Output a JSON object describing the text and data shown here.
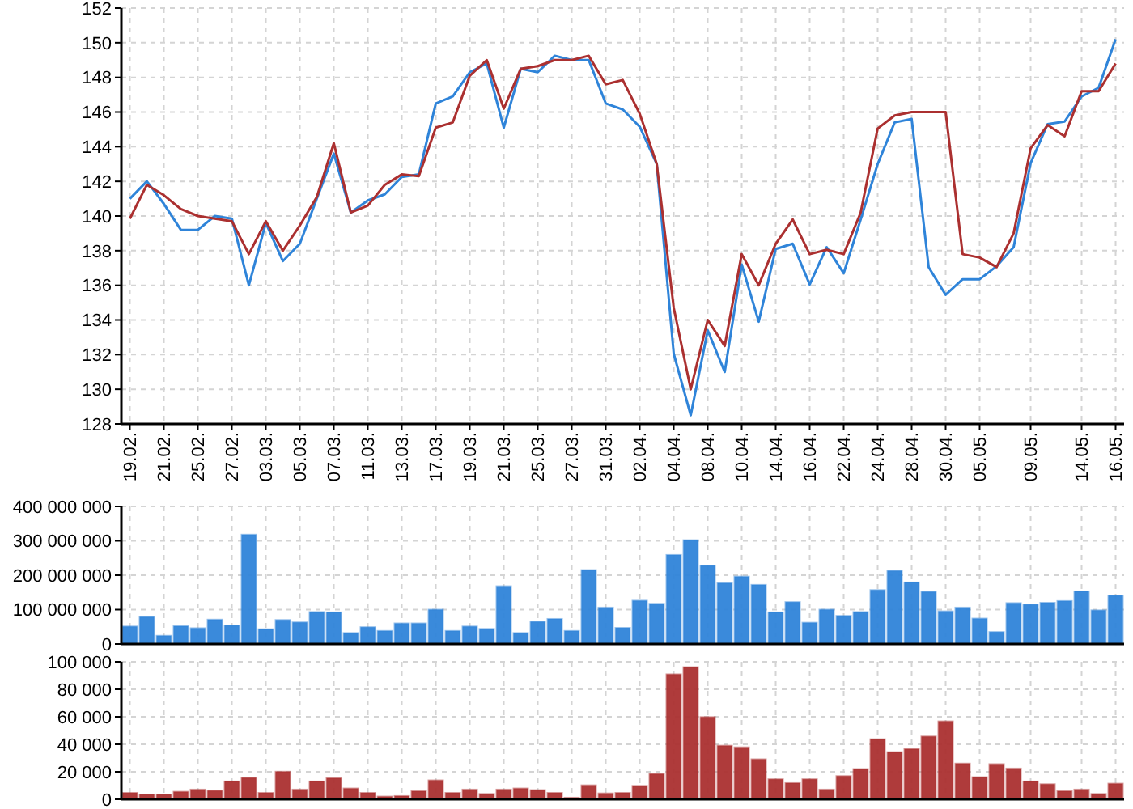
{
  "chart_data": [
    {
      "type": "line",
      "categories": [
        "19.02.",
        null,
        "21.02.",
        null,
        "25.02.",
        null,
        "27.02.",
        null,
        "03.03.",
        null,
        "05.03.",
        null,
        "07.03.",
        null,
        "11.03.",
        null,
        "13.03.",
        null,
        "17.03.",
        null,
        "19.03.",
        null,
        "21.03.",
        null,
        "25.03.",
        null,
        "27.03.",
        null,
        "31.03.",
        null,
        "02.04.",
        null,
        "04.04.",
        null,
        "08.04.",
        null,
        "10.04.",
        null,
        "14.04.",
        null,
        "16.04.",
        null,
        "22.04.",
        null,
        "24.04.",
        null,
        "28.04.",
        null,
        "30.04.",
        null,
        "05.05.",
        null,
        null,
        "09.05.",
        null,
        null,
        "14.05.",
        null,
        "16.05."
      ],
      "series": [
        {
          "color": "#2f84d9",
          "values": [
            141.0,
            142.0,
            140.7,
            139.2,
            139.2,
            140.0,
            139.85,
            136.0,
            139.6,
            137.4,
            138.4,
            141.0,
            143.6,
            140.2,
            140.9,
            141.25,
            142.25,
            142.4,
            146.5,
            146.9,
            148.3,
            148.8,
            145.1,
            148.5,
            148.3,
            149.25,
            149.0,
            149.0,
            146.5,
            146.15,
            145.15,
            143.0,
            132.05,
            128.5,
            133.4,
            131.0,
            137.2,
            133.9,
            138.1,
            138.4,
            136.05,
            138.2,
            136.7,
            139.8,
            143.0,
            145.4,
            145.6,
            137.05,
            135.45,
            136.35,
            136.35,
            137.1,
            138.2,
            143.05,
            145.3,
            145.45,
            146.9,
            147.4,
            150.2
          ]
        },
        {
          "color": "#ab3030",
          "values": [
            139.85,
            141.8,
            141.2,
            140.4,
            140.0,
            139.85,
            139.7,
            137.8,
            139.7,
            138.0,
            139.45,
            141.1,
            144.2,
            140.2,
            140.6,
            141.8,
            142.4,
            142.3,
            145.1,
            145.4,
            148.1,
            149.0,
            146.2,
            148.5,
            148.65,
            149.0,
            149.0,
            149.25,
            147.6,
            147.85,
            145.9,
            143.0,
            134.7,
            130.0,
            134.0,
            132.5,
            137.8,
            136.0,
            138.4,
            139.8,
            137.8,
            138.05,
            137.8,
            140.2,
            145.05,
            145.8,
            146.0,
            146.0,
            146.0,
            137.8,
            137.6,
            137.05,
            139.0,
            143.9,
            145.25,
            144.6,
            147.2,
            147.2,
            148.8
          ]
        }
      ],
      "ylim": [
        128,
        152
      ],
      "yticks": [
        128,
        130,
        132,
        134,
        136,
        138,
        140,
        142,
        144,
        146,
        148,
        150,
        152
      ],
      "grid": true,
      "line_style": "solid",
      "marker": "none"
    },
    {
      "type": "bar",
      "categories": [
        "19.02.",
        null,
        "21.02.",
        null,
        "25.02.",
        null,
        "27.02.",
        null,
        "03.03.",
        null,
        "05.03.",
        null,
        "07.03.",
        null,
        "11.03.",
        null,
        "13.03.",
        null,
        "17.03.",
        null,
        "19.03.",
        null,
        "21.03.",
        null,
        "25.03.",
        null,
        "27.03.",
        null,
        "31.03.",
        null,
        "02.04.",
        null,
        "04.04.",
        null,
        "08.04.",
        null,
        "10.04.",
        null,
        "14.04.",
        null,
        "16.04.",
        null,
        "22.04.",
        null,
        "24.04.",
        null,
        "28.04.",
        null,
        "30.04.",
        null,
        "05.05.",
        null,
        null,
        "09.05.",
        null,
        null,
        "14.05.",
        null,
        "16.05."
      ],
      "series": [
        {
          "color": "#2f84d9",
          "values": [
            51000000,
            79000000,
            24000000,
            52000000,
            46000000,
            71000000,
            54000000,
            318000000,
            43000000,
            70000000,
            63000000,
            93000000,
            92000000,
            32000000,
            49000000,
            38000000,
            60000000,
            60000000,
            100000000,
            38000000,
            51000000,
            44000000,
            168000000,
            32000000,
            65000000,
            73000000,
            38000000,
            215000000,
            106000000,
            47000000,
            126000000,
            117000000,
            259000000,
            302000000,
            228000000,
            177000000,
            196000000,
            172000000,
            92000000,
            122000000,
            62000000,
            100000000,
            82000000,
            93000000,
            157000000,
            213000000,
            179000000,
            152000000,
            95000000,
            106000000,
            74000000,
            35000000,
            119000000,
            115000000,
            120000000,
            125000000,
            153000000,
            98000000,
            141000000
          ]
        }
      ],
      "ylim": [
        0,
        400000000
      ],
      "yticks": [
        {
          "value": 0,
          "label": "0"
        },
        {
          "value": 100000000,
          "label": "100 000 000"
        },
        {
          "value": 200000000,
          "label": "200 000 000"
        },
        {
          "value": 300000000,
          "label": "300 000 000"
        },
        {
          "value": 400000000,
          "label": "400 000 000"
        }
      ],
      "grid": true,
      "tick_labels": "y"
    },
    {
      "type": "bar",
      "categories": [
        "19.02.",
        null,
        "21.02.",
        null,
        "25.02.",
        null,
        "27.02.",
        null,
        "03.03.",
        null,
        "05.03.",
        null,
        "07.03.",
        null,
        "11.03.",
        null,
        "13.03.",
        null,
        "17.03.",
        null,
        "19.03.",
        null,
        "21.03.",
        null,
        "25.03.",
        null,
        "27.03.",
        null,
        "31.03.",
        null,
        "02.04.",
        null,
        "04.04.",
        null,
        "08.04.",
        null,
        "10.04.",
        null,
        "14.04.",
        null,
        "16.04.",
        null,
        "22.04.",
        null,
        "24.04.",
        null,
        "28.04.",
        null,
        "30.04.",
        null,
        "05.05.",
        null,
        null,
        "09.05.",
        null,
        null,
        "14.05.",
        null,
        "16.05."
      ],
      "series": [
        {
          "color": "#ab3030",
          "values": [
            4700,
            3500,
            3500,
            5500,
            7100,
            6300,
            13000,
            15700,
            4700,
            20100,
            7100,
            13000,
            15400,
            7900,
            4700,
            2000,
            2400,
            5900,
            13800,
            4700,
            7100,
            3900,
            7100,
            7900,
            6700,
            4700,
            1200,
            10200,
            4300,
            4700,
            9800,
            18500,
            90900,
            96100,
            59800,
            39000,
            37800,
            29100,
            14600,
            11800,
            14600,
            7100,
            16900,
            22000,
            43700,
            34300,
            36600,
            45700,
            56700,
            26000,
            16100,
            25600,
            22400,
            13000,
            11000,
            5900,
            7100,
            3900,
            11400
          ]
        }
      ],
      "ylim": [
        0,
        100000
      ],
      "yticks": [
        {
          "value": 0,
          "label": "0"
        },
        {
          "value": 20000,
          "label": "20 000"
        },
        {
          "value": 40000,
          "label": "40 000"
        },
        {
          "value": 60000,
          "label": "60 000"
        },
        {
          "value": 80000,
          "label": "80 000"
        },
        {
          "value": 100000,
          "label": "100 000"
        }
      ],
      "grid": true,
      "tick_labels": "y"
    }
  ]
}
